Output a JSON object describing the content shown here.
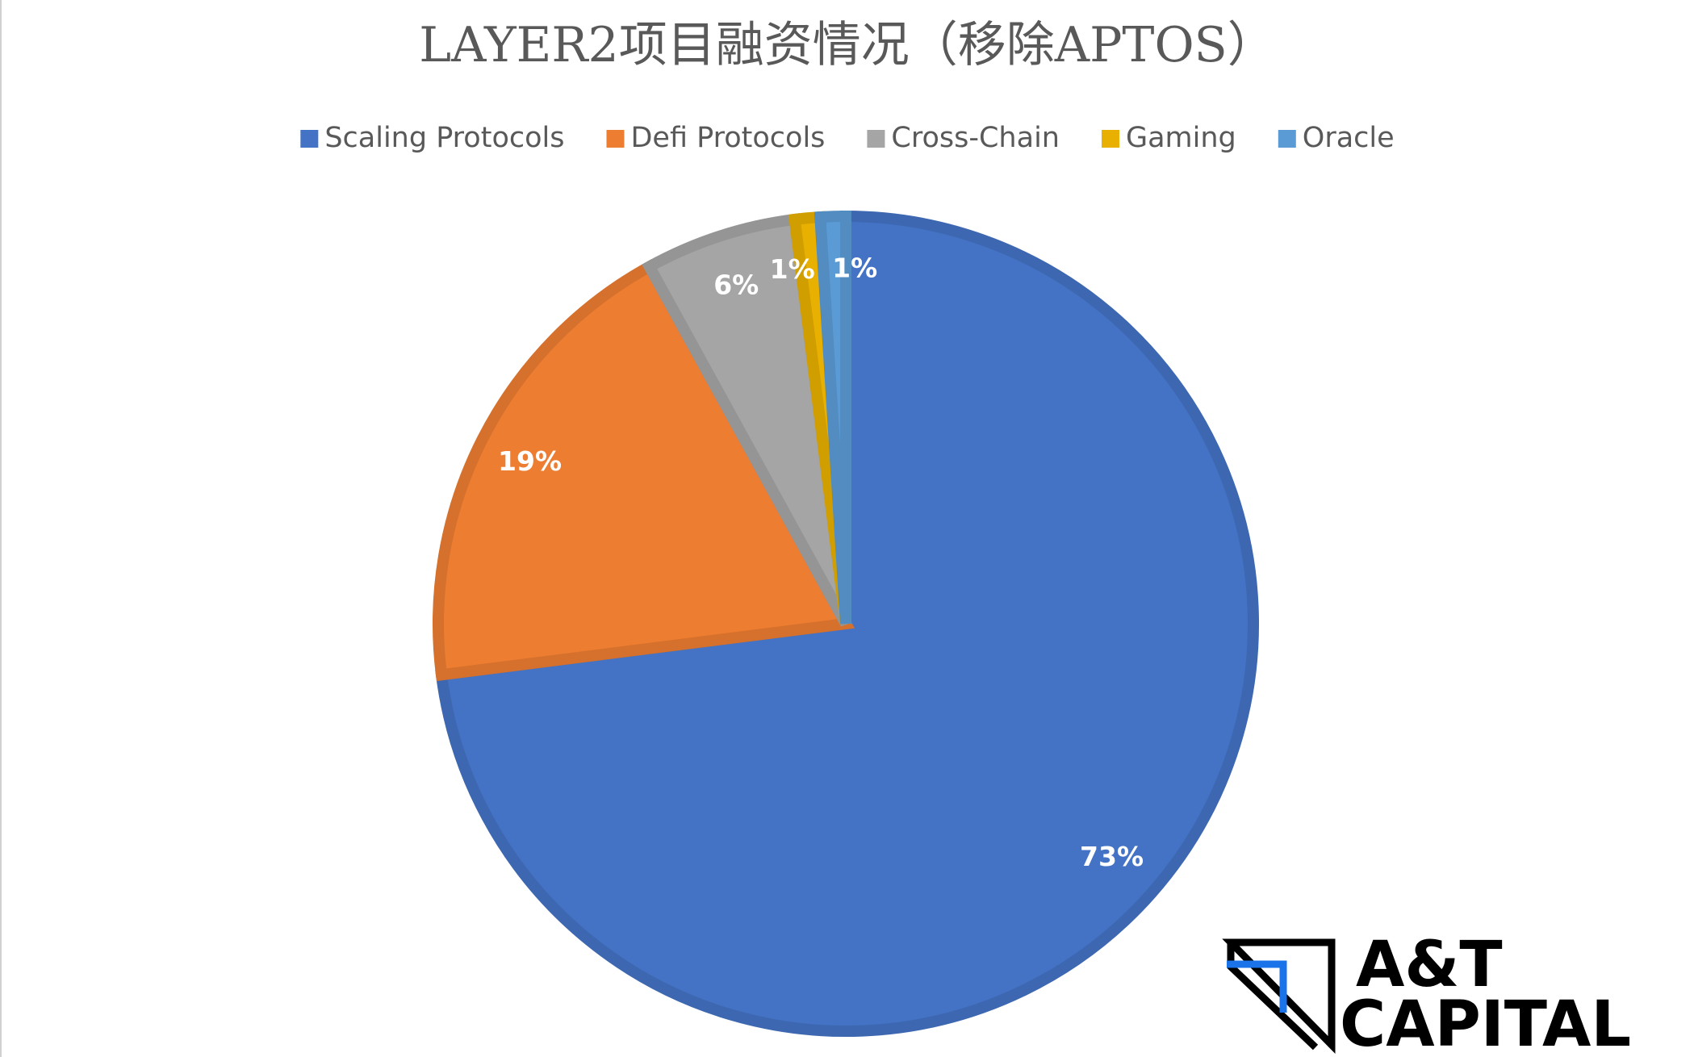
{
  "chart_data": {
    "type": "pie",
    "title": "LAYER2项目融资情况（移除APTOS）",
    "categories": [
      "Scaling Protocols",
      "Defi Protocols",
      "Cross-Chain",
      "Gaming",
      "Oracle"
    ],
    "values": [
      73,
      19,
      6,
      1,
      1
    ],
    "value_labels": [
      "73%",
      "19%",
      "6%",
      "1%",
      "1%"
    ],
    "colors": [
      "#4472c4",
      "#ed7d31",
      "#a5a5a5",
      "#e8b000",
      "#5b9bd5"
    ],
    "legend": "top"
  },
  "logo": [
    "A&T",
    "CAPITAL"
  ]
}
